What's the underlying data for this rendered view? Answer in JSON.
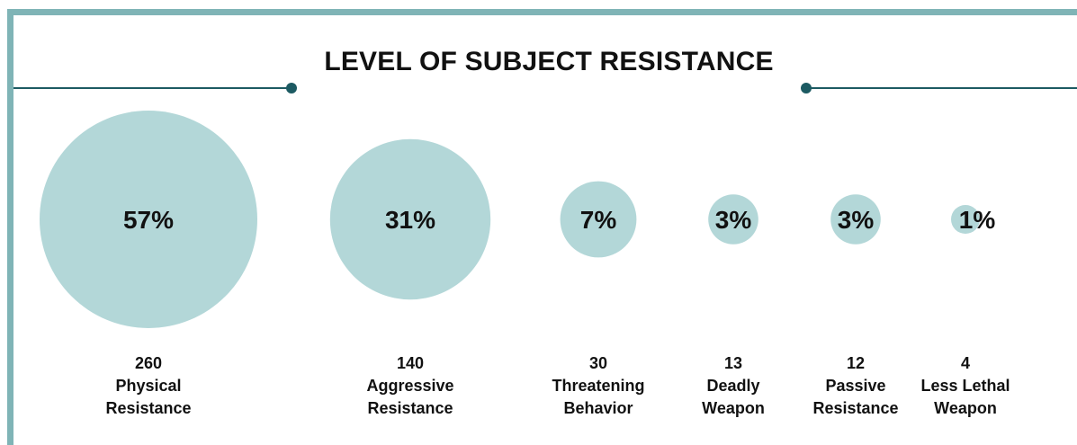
{
  "chart_data": {
    "type": "bubble",
    "title": "LEVEL OF SUBJECT RESISTANCE",
    "categories": [
      [
        "Physical",
        "Resistance"
      ],
      [
        "Aggressive",
        "Resistance"
      ],
      [
        "Threatening",
        "Behavior"
      ],
      [
        "Deadly",
        "Weapon"
      ],
      [
        "Passive",
        "Resistance"
      ],
      [
        "Less Lethal",
        "Weapon"
      ]
    ],
    "counts": [
      "260",
      "140",
      "30",
      "13",
      "12",
      "4"
    ],
    "percent_labels": [
      "57%",
      "31%",
      "7%",
      "3%",
      "3%",
      "1%"
    ],
    "values": [
      57,
      31,
      7,
      3,
      3,
      1
    ],
    "colors": {
      "bubble": "#b3d7d8",
      "frame": "#7fb4b6",
      "rule": "#1c5a62",
      "text": "#111111"
    }
  }
}
